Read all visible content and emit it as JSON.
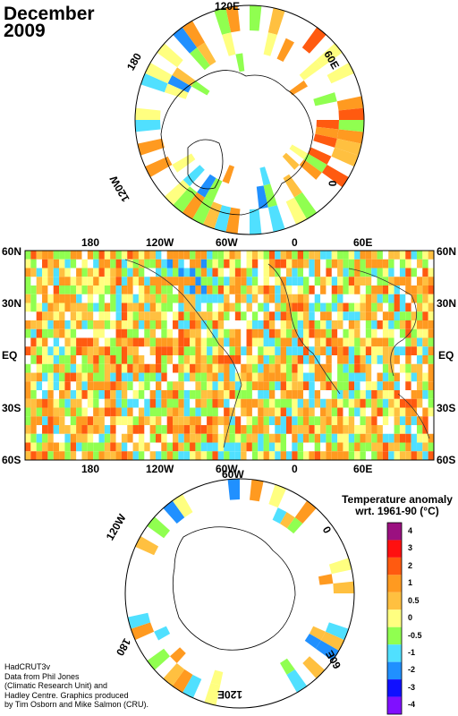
{
  "title": {
    "month": "December",
    "year": "2009"
  },
  "north_polar": {
    "labels": {
      "top": "120E",
      "upper_left": "180",
      "upper_right": "60E",
      "right": "0",
      "lower_left": "120W"
    }
  },
  "main_map": {
    "lat_labels": [
      "60N",
      "30N",
      "EQ",
      "30S",
      "60S"
    ],
    "lon_labels": [
      "180",
      "120W",
      "60W",
      "0",
      "60E"
    ]
  },
  "south_polar": {
    "labels": {
      "upper_left": "120W",
      "top": "60W",
      "right": "0",
      "lower_left": "180",
      "bottom": "120E",
      "lower_right": "60E"
    }
  },
  "legend": {
    "title_line1": "Temperature anomaly",
    "title_line2": "wrt. 1961-90  (°C)",
    "levels": [
      {
        "label": "4",
        "color": "#9b1080"
      },
      {
        "label": "3",
        "color": "#ff1010"
      },
      {
        "label": "2",
        "color": "#ff5a10"
      },
      {
        "label": "1",
        "color": "#ff9a20"
      },
      {
        "label": "0.5",
        "color": "#ffc040"
      },
      {
        "label": "0",
        "color": "#ffff80"
      },
      {
        "label": "-0.5",
        "color": "#90ff50"
      },
      {
        "label": "-1",
        "color": "#50e0ff"
      },
      {
        "label": "-2",
        "color": "#2090ff"
      },
      {
        "label": "-3",
        "color": "#1010ff"
      },
      {
        "label": "-4",
        "color": "#8010ff"
      }
    ]
  },
  "credits": {
    "dataset": "HadCRUT3v",
    "line1": "Data from Phil Jones",
    "line2": "(Climatic Research Unit) and",
    "line3": "Hadley Centre.  Graphics produced",
    "line4": "by Tim Osborn and Mike Salmon (CRU)."
  }
}
